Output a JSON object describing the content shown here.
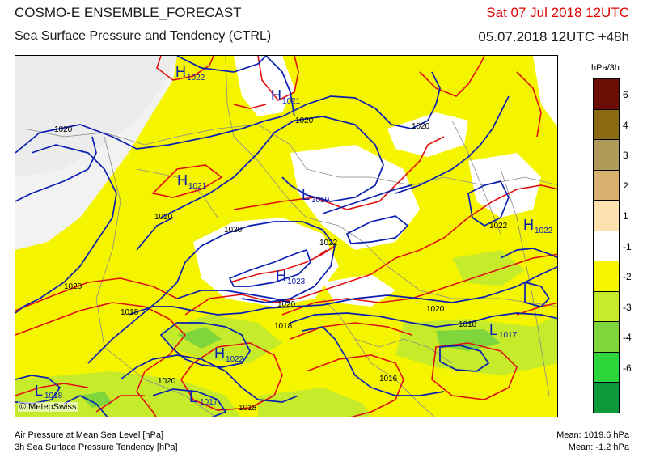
{
  "header": {
    "title": "COSMO-E ENSEMBLE_FORECAST",
    "subtitle": "Sea Surface Pressure and Tendency (CTRL)",
    "valid_time": "Sat 07 Jul 2018 12UTC",
    "run_time": "05.07.2018 12UTC +48h"
  },
  "colors": {
    "valid_time": "#e00000",
    "isobar": "#0a1fb0",
    "tendency_contour": "#e01010",
    "land_fill": "#f5f500",
    "light_fill": "#c6eb2a",
    "green_fill": "#7ed63c"
  },
  "legend": {
    "unit": "hPa/3h",
    "bins": [
      {
        "label": "6",
        "color": "#6b0c05"
      },
      {
        "label": "4",
        "color": "#8a6a12"
      },
      {
        "label": "3",
        "color": "#b09a5a"
      },
      {
        "label": "2",
        "color": "#d8b070"
      },
      {
        "label": "1",
        "color": "#fde2b0"
      },
      {
        "label": "-1",
        "color": "#ffffff"
      },
      {
        "label": "-2",
        "color": "#f5f500"
      },
      {
        "label": "-3",
        "color": "#c6eb2a"
      },
      {
        "label": "-4",
        "color": "#7ed63c"
      },
      {
        "label": "-6",
        "color": "#2bd63a"
      },
      {
        "label": "",
        "color": "#0a9a3a"
      }
    ]
  },
  "map": {
    "pressure_centers": [
      {
        "type": "H",
        "value": "1022"
      },
      {
        "type": "H",
        "value": "1021"
      },
      {
        "type": "H",
        "value": "1021"
      },
      {
        "type": "L",
        "value": "1019"
      },
      {
        "type": "H",
        "value": "1023"
      },
      {
        "type": "H",
        "value": "1022"
      },
      {
        "type": "H",
        "value": "1022"
      },
      {
        "type": "L",
        "value": "1017"
      },
      {
        "type": "L",
        "value": "1017"
      },
      {
        "type": "L",
        "value": "1018"
      }
    ],
    "isobar_labels": [
      "1020",
      "1020",
      "1020",
      "1020",
      "1022",
      "1020",
      "1020",
      "1018",
      "1020",
      "1018",
      "1022",
      "1020",
      "1018",
      "1016",
      "1020",
      "1018"
    ],
    "copyright": "© MeteoSwiss"
  },
  "footer": {
    "line1": "Air Pressure at Mean Sea Level [hPa]",
    "line2": "3h Sea Surface Pressure Tendency [hPa]",
    "mean1": "Mean: 1019.6 hPa",
    "mean2": "Mean:  -1.2 hPa"
  }
}
